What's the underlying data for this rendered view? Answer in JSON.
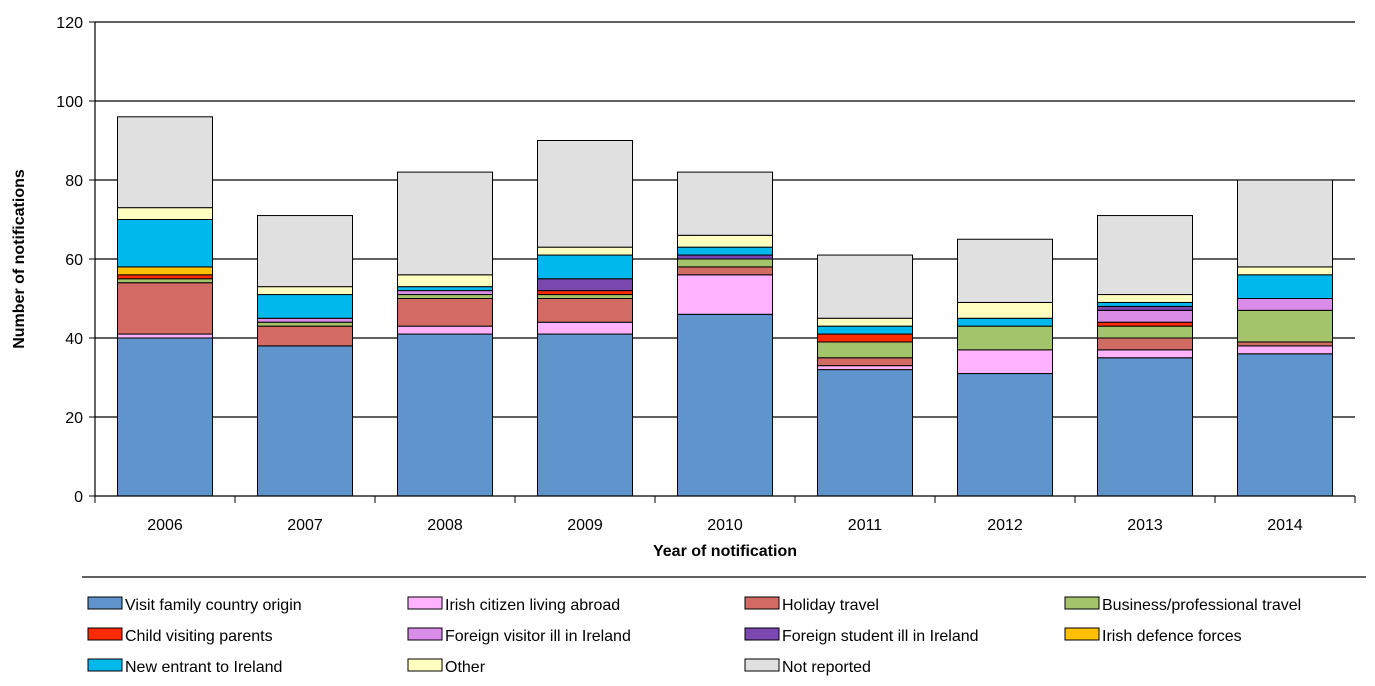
{
  "chart_data": {
    "type": "bar",
    "stacked": true,
    "title": "",
    "xlabel": "Year of notification",
    "ylabel": "Number of notifications",
    "ylim": [
      0,
      120
    ],
    "yticks": [
      0,
      20,
      40,
      60,
      80,
      100,
      120
    ],
    "grid": true,
    "legend_position": "bottom",
    "categories": [
      "2006",
      "2007",
      "2008",
      "2009",
      "2010",
      "2011",
      "2012",
      "2013",
      "2014"
    ],
    "series": [
      {
        "name": "Visit family country origin",
        "color": "#6094cc",
        "values": [
          40,
          38,
          41,
          41,
          46,
          32,
          31,
          35,
          36
        ]
      },
      {
        "name": "Irish citizen living abroad",
        "color": "#ffb3ff",
        "values": [
          1,
          0,
          2,
          3,
          10,
          1,
          6,
          2,
          2
        ]
      },
      {
        "name": "Holiday travel",
        "color": "#d26b63",
        "values": [
          13,
          5,
          7,
          6,
          2,
          2,
          0,
          3,
          1
        ]
      },
      {
        "name": "Business/professional travel",
        "color": "#a3c46b",
        "values": [
          1,
          1,
          1,
          1,
          2,
          4,
          6,
          3,
          8
        ]
      },
      {
        "name": "Child visiting parents",
        "color": "#ff2a00",
        "values": [
          1,
          0,
          0,
          1,
          0,
          2,
          0,
          1,
          0
        ]
      },
      {
        "name": "Foreign visitor ill in Ireland",
        "color": "#d98ce8",
        "values": [
          0,
          1,
          1,
          0,
          0,
          0,
          0,
          3,
          3
        ]
      },
      {
        "name": "Foreign student ill in Ireland",
        "color": "#7a48b0",
        "values": [
          0,
          0,
          0,
          3,
          1,
          0,
          0,
          1,
          0
        ]
      },
      {
        "name": "Irish defence forces",
        "color": "#ffc000",
        "values": [
          2,
          0,
          0,
          0,
          0,
          0,
          0,
          0,
          0
        ]
      },
      {
        "name": "New entrant to Ireland",
        "color": "#00b8ec",
        "values": [
          12,
          6,
          1,
          6,
          2,
          2,
          2,
          1,
          6
        ]
      },
      {
        "name": "Other",
        "color": "#ffffc0",
        "values": [
          3,
          2,
          3,
          2,
          3,
          2,
          4,
          2,
          2
        ]
      },
      {
        "name": "Not reported",
        "color": "#e0e0e0",
        "values": [
          23,
          18,
          26,
          27,
          16,
          16,
          16,
          20,
          22
        ]
      }
    ]
  }
}
